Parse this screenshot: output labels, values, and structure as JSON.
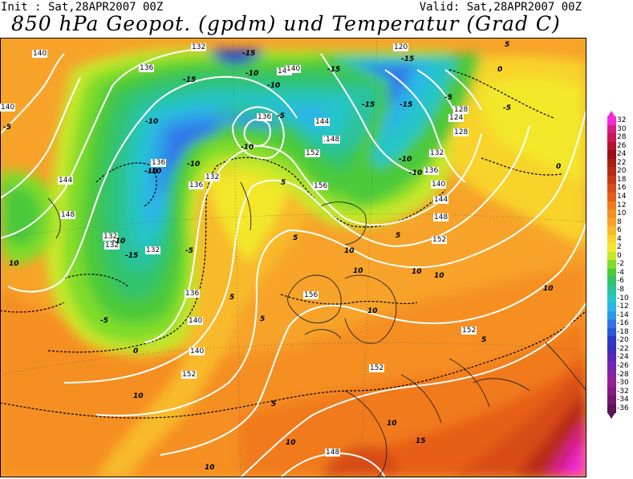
{
  "header": {
    "init": "Init : Sat,28APR2007 00Z",
    "valid": "Valid: Sat,28APR2007 00Z",
    "title": "850 hPa Geopot. (gpdm) und Temperatur (Grad C)"
  },
  "legend": {
    "levels": [
      {
        "label": "32",
        "color": "#f22bd7"
      },
      {
        "label": "30",
        "color": "#d61e88"
      },
      {
        "label": "28",
        "color": "#c81858"
      },
      {
        "label": "26",
        "color": "#b5132e"
      },
      {
        "label": "24",
        "color": "#9c0f17"
      },
      {
        "label": "22",
        "color": "#a51f12"
      },
      {
        "label": "20",
        "color": "#b82b12"
      },
      {
        "label": "18",
        "color": "#c83a14"
      },
      {
        "label": "16",
        "color": "#d84c17"
      },
      {
        "label": "14",
        "color": "#e75e19"
      },
      {
        "label": "12",
        "color": "#f17a1f"
      },
      {
        "label": "10",
        "color": "#f58f23"
      },
      {
        "label": "8",
        "color": "#f7a32a"
      },
      {
        "label": "6",
        "color": "#f8ba2b"
      },
      {
        "label": "4",
        "color": "#f8d32c"
      },
      {
        "label": "2",
        "color": "#f3e72c"
      },
      {
        "label": "0",
        "color": "#c7e82a"
      },
      {
        "label": "-2",
        "color": "#7fdc2a"
      },
      {
        "label": "-4",
        "color": "#4bc93a"
      },
      {
        "label": "-6",
        "color": "#33c36b"
      },
      {
        "label": "-8",
        "color": "#2ac39d"
      },
      {
        "label": "-10",
        "color": "#27c5c8"
      },
      {
        "label": "-12",
        "color": "#2bb5e6"
      },
      {
        "label": "-14",
        "color": "#2f98e9"
      },
      {
        "label": "-16",
        "color": "#3076ea"
      },
      {
        "label": "-18",
        "color": "#2c55dc"
      },
      {
        "label": "-20",
        "color": "#2a3cc8"
      },
      {
        "label": "-22",
        "color": "#3a2ebe"
      },
      {
        "label": "-24",
        "color": "#5a27b8"
      },
      {
        "label": "-26",
        "color": "#7324b0"
      },
      {
        "label": "-28",
        "color": "#8a23a6"
      },
      {
        "label": "-30",
        "color": "#951e95"
      },
      {
        "label": "-32",
        "color": "#87197f"
      },
      {
        "label": "-34",
        "color": "#74156c"
      },
      {
        "label": "-36",
        "color": "#5d1156"
      }
    ]
  },
  "geopotential_labels": [
    "140",
    "136",
    "132",
    "136",
    "140",
    "140",
    "144",
    "148",
    "152",
    "156",
    "120",
    "124",
    "128",
    "132",
    "136",
    "140",
    "144",
    "148",
    "152",
    "152",
    "144",
    "148",
    "132",
    "132",
    "136",
    "140",
    "144",
    "148",
    "152",
    "156",
    "152",
    "148",
    "136",
    "136",
    "132",
    "128",
    "140",
    "132"
  ],
  "temperature_labels": [
    "-5",
    "-15",
    "-15",
    "-10",
    "-10",
    "-15",
    "-15",
    "-15",
    "-15",
    "-10",
    "-10",
    "-10",
    "-10",
    "-5",
    "-5",
    "-5",
    "-5",
    "-10",
    "-15",
    "5",
    "5",
    "5",
    "5",
    "0",
    "0",
    "0",
    "10",
    "10",
    "10",
    "10",
    "10",
    "10",
    "10",
    "10",
    "10",
    "10",
    "15",
    "5",
    "5",
    "10",
    "-5",
    "-10",
    "-10",
    "-10",
    "5",
    "5"
  ]
}
